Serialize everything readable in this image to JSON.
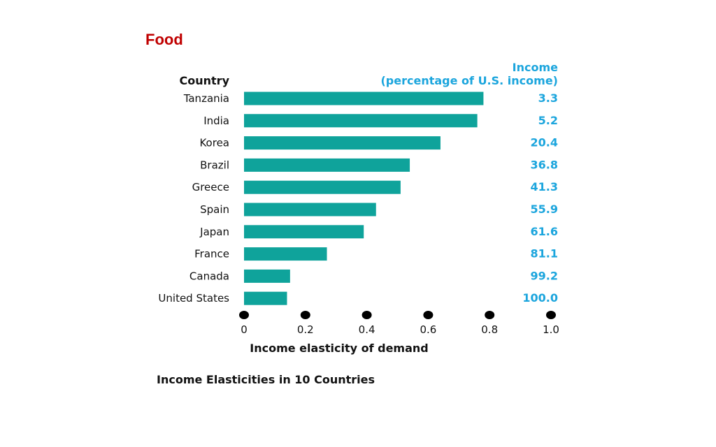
{
  "slide": {
    "title": "Food"
  },
  "chart_data": {
    "type": "bar",
    "orientation": "horizontal",
    "categories": [
      "Tanzania",
      "India",
      "Korea",
      "Brazil",
      "Greece",
      "Spain",
      "Japan",
      "France",
      "Canada",
      "United States"
    ],
    "values": [
      0.78,
      0.76,
      0.64,
      0.54,
      0.51,
      0.43,
      0.39,
      0.27,
      0.15,
      0.14
    ],
    "income_pct_us": [
      "3.3",
      "5.2",
      "20.4",
      "36.8",
      "41.3",
      "55.9",
      "61.6",
      "81.1",
      "99.2",
      "100.0"
    ],
    "category_header": "Country",
    "income_header_line1": "Income",
    "income_header_line2": "(percentage of U.S. income)",
    "xlabel": "Income elasticity of demand",
    "xlim": [
      0,
      1.0
    ],
    "xticks": [
      0,
      0.2,
      0.4,
      0.6,
      0.8,
      1.0
    ],
    "xtick_labels": [
      "0",
      "0.2",
      "0.4",
      "0.6",
      "0.8",
      "1.0"
    ],
    "caption": "Income Elasticities in 10 Countries",
    "colors": {
      "bar": "#0fa39b",
      "income_text": "#1ba5dd",
      "title": "#c00000",
      "text": "#111111"
    }
  }
}
